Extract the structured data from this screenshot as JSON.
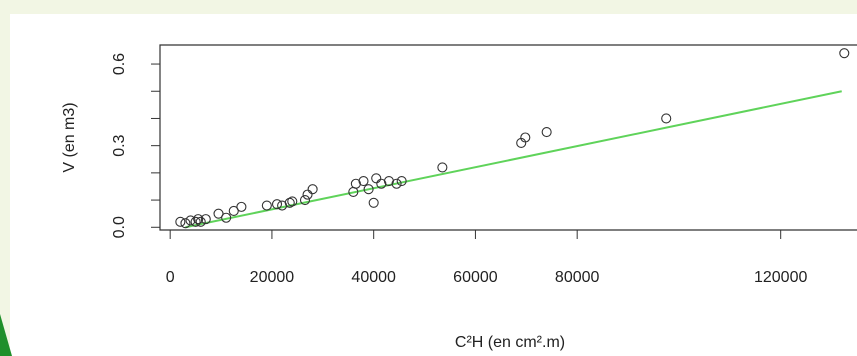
{
  "colors": {
    "background": "#f2f6e4",
    "panel": "#ffffff",
    "accent_corner": "#1f8f2a",
    "points": "#333333",
    "fit_line": "#5fd35a",
    "axis": "#333333"
  },
  "chart_data": {
    "type": "scatter",
    "title": "",
    "xlabel": "C²H (en cm².m)",
    "ylabel": "V (en m3)",
    "xlim": [
      -2000,
      135000
    ],
    "ylim": [
      -0.01,
      0.67
    ],
    "xticks": [
      0,
      20000,
      40000,
      60000,
      80000,
      120000
    ],
    "xtick_labels": [
      "0",
      "20000",
      "40000",
      "60000",
      "80000",
      "120000"
    ],
    "yticks": [
      0.0,
      0.3,
      0.6
    ],
    "ytick_labels": [
      "0.0",
      "0.3",
      "0.6"
    ],
    "y_minor_ticks": [
      0.1,
      0.2,
      0.4,
      0.5
    ],
    "grid": false,
    "legend": "none",
    "points": [
      {
        "x": 2000,
        "y": 0.02
      },
      {
        "x": 3000,
        "y": 0.015
      },
      {
        "x": 4000,
        "y": 0.025
      },
      {
        "x": 5000,
        "y": 0.02
      },
      {
        "x": 5500,
        "y": 0.03
      },
      {
        "x": 6000,
        "y": 0.02
      },
      {
        "x": 7000,
        "y": 0.03
      },
      {
        "x": 9500,
        "y": 0.05
      },
      {
        "x": 11000,
        "y": 0.035
      },
      {
        "x": 12500,
        "y": 0.06
      },
      {
        "x": 14000,
        "y": 0.075
      },
      {
        "x": 19000,
        "y": 0.08
      },
      {
        "x": 21000,
        "y": 0.085
      },
      {
        "x": 22000,
        "y": 0.08
      },
      {
        "x": 23500,
        "y": 0.09
      },
      {
        "x": 24000,
        "y": 0.095
      },
      {
        "x": 26500,
        "y": 0.1
      },
      {
        "x": 27000,
        "y": 0.12
      },
      {
        "x": 28000,
        "y": 0.14
      },
      {
        "x": 36000,
        "y": 0.13
      },
      {
        "x": 36500,
        "y": 0.16
      },
      {
        "x": 38000,
        "y": 0.17
      },
      {
        "x": 39000,
        "y": 0.14
      },
      {
        "x": 40000,
        "y": 0.09
      },
      {
        "x": 40500,
        "y": 0.18
      },
      {
        "x": 41500,
        "y": 0.16
      },
      {
        "x": 43000,
        "y": 0.17
      },
      {
        "x": 44500,
        "y": 0.16
      },
      {
        "x": 45500,
        "y": 0.17
      },
      {
        "x": 53500,
        "y": 0.22
      },
      {
        "x": 69000,
        "y": 0.31
      },
      {
        "x": 69800,
        "y": 0.33
      },
      {
        "x": 74000,
        "y": 0.35
      },
      {
        "x": 97500,
        "y": 0.4
      },
      {
        "x": 132500,
        "y": 0.64
      }
    ],
    "fit_line": {
      "x": [
        3000,
        132000
      ],
      "y": [
        0.0,
        0.5
      ]
    }
  }
}
